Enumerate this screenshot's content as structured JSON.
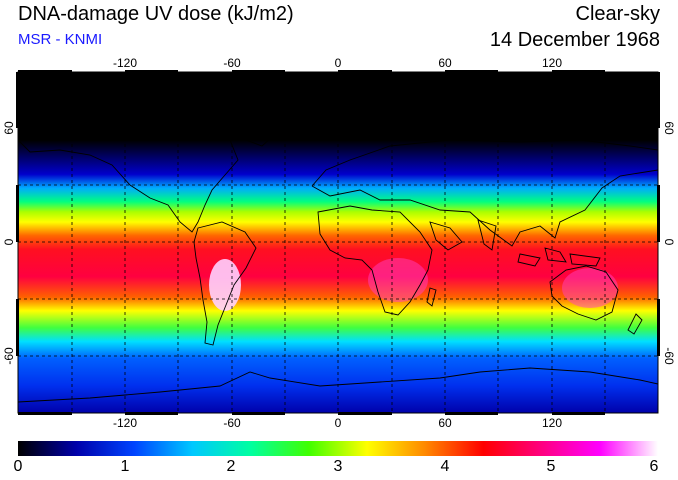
{
  "header": {
    "title": "DNA-damage UV dose (kJ/m2)",
    "subtitle": "MSR - KNMI",
    "condition": "Clear-sky",
    "date": "14 December 1968"
  },
  "map": {
    "lon_ticks": [
      "-120",
      "-60",
      "0",
      "60",
      "120"
    ],
    "lat_ticks": [
      "60",
      "0",
      "-60"
    ]
  },
  "colorbar": {
    "labels": [
      "0",
      "1",
      "2",
      "3",
      "4",
      "5",
      "6"
    ],
    "stops": [
      "#000000",
      "#0000aa",
      "#0044ff",
      "#00c8ff",
      "#00ffa0",
      "#40ff00",
      "#ffff00",
      "#ff8800",
      "#ff0000",
      "#ff0080",
      "#ff00ff",
      "#ffffff"
    ]
  }
}
